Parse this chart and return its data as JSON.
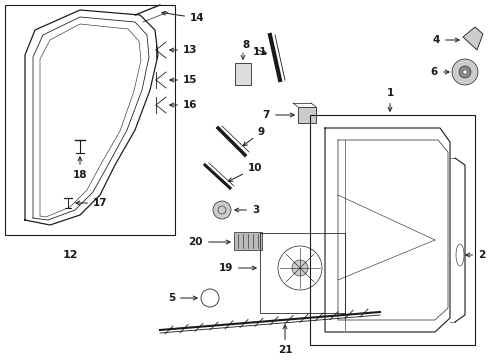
{
  "bg_color": "#ffffff",
  "lc": "#1a1a1a",
  "lw": 0.8
}
